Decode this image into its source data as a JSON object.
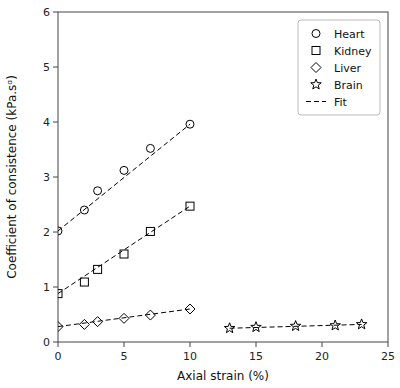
{
  "chart_data": {
    "type": "scatter",
    "xlabel": "Axial strain (%)",
    "ylabel": "Coefficient of consistence (kPa.sᵅ)",
    "xlim": [
      0,
      25
    ],
    "ylim": [
      0,
      6
    ],
    "xticks": [
      0,
      5,
      10,
      15,
      20,
      25
    ],
    "yticks": [
      0,
      1,
      2,
      3,
      4,
      5,
      6
    ],
    "legend": "upper right",
    "color": "#000000",
    "series": [
      {
        "name": "Heart",
        "type": "scatter",
        "marker": "circle",
        "x": [
          0,
          2,
          3,
          5,
          7,
          10
        ],
        "values": [
          2.02,
          2.4,
          2.75,
          3.12,
          3.52,
          3.96
        ]
      },
      {
        "name": "Kidney",
        "type": "scatter",
        "marker": "square",
        "x": [
          0,
          2,
          3,
          5,
          7,
          10
        ],
        "values": [
          0.88,
          1.09,
          1.32,
          1.6,
          2.01,
          2.47
        ]
      },
      {
        "name": "Liver",
        "type": "scatter",
        "marker": "diamond",
        "x": [
          0,
          2,
          3,
          5,
          7,
          10
        ],
        "values": [
          0.28,
          0.32,
          0.37,
          0.43,
          0.49,
          0.6
        ]
      },
      {
        "name": "Brain",
        "type": "scatter",
        "marker": "star",
        "x": [
          13,
          15,
          18,
          21,
          23
        ],
        "values": [
          0.25,
          0.27,
          0.29,
          0.3,
          0.32
        ]
      },
      {
        "name": "Fit",
        "type": "line",
        "line_style": "dashed",
        "x": [
          0,
          10
        ],
        "values": [
          2.02,
          3.96
        ]
      },
      {
        "name": "Fit",
        "type": "line",
        "line_style": "dashed",
        "x": [
          0,
          10
        ],
        "values": [
          0.88,
          2.47
        ]
      },
      {
        "name": "Fit",
        "type": "line",
        "line_style": "dashed",
        "x": [
          0,
          10
        ],
        "values": [
          0.28,
          0.6
        ]
      },
      {
        "name": "Fit",
        "type": "line",
        "line_style": "dashed",
        "x": [
          13,
          23
        ],
        "values": [
          0.25,
          0.32
        ]
      }
    ]
  }
}
